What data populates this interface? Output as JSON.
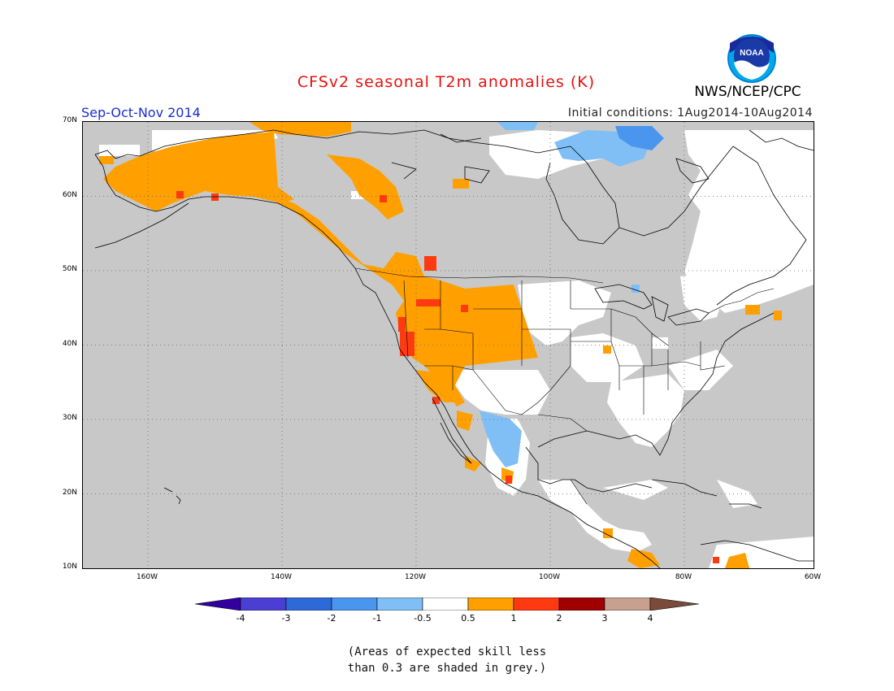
{
  "header": {
    "title": "CFSv2 seasonal T2m anomalies (K)",
    "period": "Sep-Oct-Nov 2014",
    "initial_conditions": "Initial conditions: 1Aug2014-10Aug2014",
    "agency": "NWS/NCEP/CPC",
    "logo_text": "NOAA"
  },
  "axes": {
    "lat_ticks": [
      "70N",
      "60N",
      "50N",
      "40N",
      "30N",
      "20N",
      "10N"
    ],
    "lon_ticks": [
      "160W",
      "140W",
      "120W",
      "100W",
      "80W",
      "60W"
    ]
  },
  "legend": {
    "labels": [
      "-4",
      "-3",
      "-2",
      "-1",
      "-0.5",
      "0.5",
      "1",
      "2",
      "3",
      "4"
    ],
    "colors": {
      "lt_-4": "#3300a0",
      "-4_-3": "#4a3fd2",
      "-3_-2": "#2d6ad8",
      "-2_-1": "#4a96ee",
      "-1_-0.5": "#80bff5",
      "-0.5_0.5": "#ffffff",
      "0.5_1": "#ffa000",
      "1_2": "#ff3a10",
      "2_3": "#a00000",
      "3_4": "#c8a090",
      "gt_4": "#7a4a3a"
    }
  },
  "note": {
    "line1": "(Areas of expected skill less",
    "line2": "than 0.3 are shaded in grey.)"
  }
}
